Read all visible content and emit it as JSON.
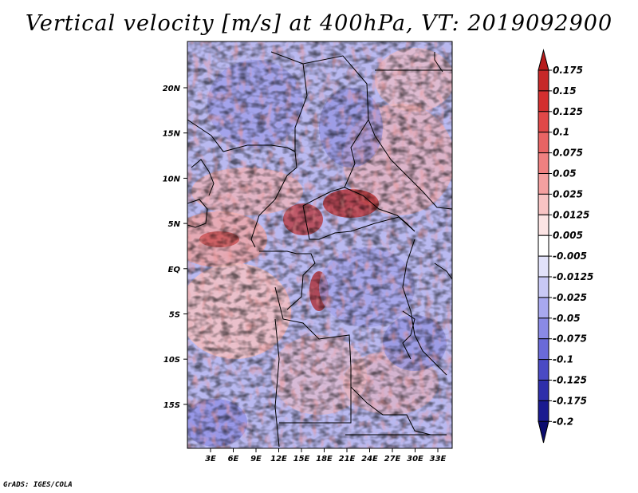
{
  "title": "Vertical velocity [m/s] at 400hPa, VT: 2019092900",
  "footer": "GrADS: IGES/COLA",
  "map": {
    "lon_ticks": [
      "3E",
      "6E",
      "9E",
      "12E",
      "15E",
      "18E",
      "21E",
      "24E",
      "27E",
      "30E",
      "33E"
    ],
    "lat_ticks": [
      "20N",
      "15N",
      "10N",
      "5N",
      "EQ",
      "5S",
      "10S",
      "15S"
    ]
  },
  "colorbar": {
    "levels": [
      "0.175",
      "0.15",
      "0.125",
      "0.1",
      "0.075",
      "0.05",
      "0.025",
      "0.0125",
      "0.005",
      "-0.005",
      "-0.0125",
      "-0.025",
      "-0.05",
      "-0.075",
      "-0.1",
      "-0.125",
      "-0.175",
      "-0.2"
    ],
    "colors": [
      "#b71c1c",
      "#c62828",
      "#d32f2f",
      "#e04848",
      "#e86464",
      "#ef8080",
      "#f4a0a0",
      "#f8c4c4",
      "#fce4e4",
      "#ffffff",
      "#e2e2fa",
      "#c8c8f5",
      "#a8a8ef",
      "#8a8ae6",
      "#6a6ad8",
      "#4a4ac4",
      "#2e2eaa",
      "#1a1a90",
      "#0c0c6e"
    ]
  }
}
